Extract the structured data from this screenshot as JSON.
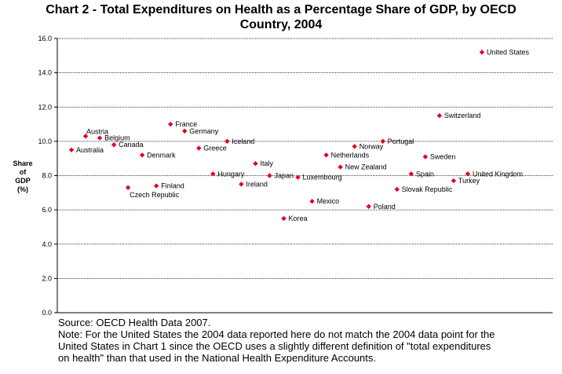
{
  "chart_data": {
    "type": "scatter",
    "title_line1": "Chart 2 - Total Expenditures on Health as a Percentage Share of GDP, by OECD",
    "title_line2": "Country, 2004",
    "ylabel_lines": [
      "Share",
      "of",
      "GDP",
      "(%)"
    ],
    "xlabel": "",
    "ylim": [
      0,
      16
    ],
    "yticks": [
      "0.0",
      "2.0",
      "4.0",
      "6.0",
      "8.0",
      "10.0",
      "12.0",
      "14.0",
      "16.0"
    ],
    "grid": true,
    "marker_color": "#e8001c",
    "points": [
      {
        "label": "Australia",
        "x": 1,
        "y": 9.5
      },
      {
        "label": "Austria",
        "x": 2,
        "y": 10.3
      },
      {
        "label": "Belgium",
        "x": 3,
        "y": 10.2
      },
      {
        "label": "Canada",
        "x": 4,
        "y": 9.8
      },
      {
        "label": "Czech Republic",
        "x": 5,
        "y": 7.3
      },
      {
        "label": "Denmark",
        "x": 6,
        "y": 9.2
      },
      {
        "label": "Finland",
        "x": 7,
        "y": 7.4
      },
      {
        "label": "France",
        "x": 8,
        "y": 11.0
      },
      {
        "label": "Germany",
        "x": 9,
        "y": 10.6
      },
      {
        "label": "Greece",
        "x": 10,
        "y": 9.6
      },
      {
        "label": "Hungary",
        "x": 11,
        "y": 8.1
      },
      {
        "label": "Iceland",
        "x": 12,
        "y": 10.0
      },
      {
        "label": "Ireland",
        "x": 13,
        "y": 7.5
      },
      {
        "label": "Italy",
        "x": 14,
        "y": 8.7
      },
      {
        "label": "Japan",
        "x": 15,
        "y": 8.0
      },
      {
        "label": "Korea",
        "x": 16,
        "y": 5.5
      },
      {
        "label": "Luxembourg",
        "x": 17,
        "y": 7.9
      },
      {
        "label": "Mexico",
        "x": 18,
        "y": 6.5
      },
      {
        "label": "Netherlands",
        "x": 19,
        "y": 9.2
      },
      {
        "label": "New Zealand",
        "x": 20,
        "y": 8.5
      },
      {
        "label": "Norway",
        "x": 21,
        "y": 9.7
      },
      {
        "label": "Poland",
        "x": 22,
        "y": 6.2
      },
      {
        "label": "Portugal",
        "x": 23,
        "y": 10.0
      },
      {
        "label": "Slovak Republic",
        "x": 24,
        "y": 7.2
      },
      {
        "label": "Spain",
        "x": 25,
        "y": 8.1
      },
      {
        "label": "Sweden",
        "x": 26,
        "y": 9.1
      },
      {
        "label": "Switzerland",
        "x": 27,
        "y": 11.5
      },
      {
        "label": "Turkey",
        "x": 28,
        "y": 7.7
      },
      {
        "label": "United Kingdom",
        "x": 29,
        "y": 8.1
      },
      {
        "label": "United States",
        "x": 30,
        "y": 15.2
      }
    ]
  },
  "notes": {
    "source": "Source: OECD Health Data 2007.",
    "note_lines": [
      "Note: For the United States the 2004 data reported here do not match the 2004 data point for the",
      "United States in Chart 1 since the OECD uses a slightly different definition of \"total expenditures",
      "on health\" than that used in the National Health Expenditure Accounts."
    ]
  }
}
